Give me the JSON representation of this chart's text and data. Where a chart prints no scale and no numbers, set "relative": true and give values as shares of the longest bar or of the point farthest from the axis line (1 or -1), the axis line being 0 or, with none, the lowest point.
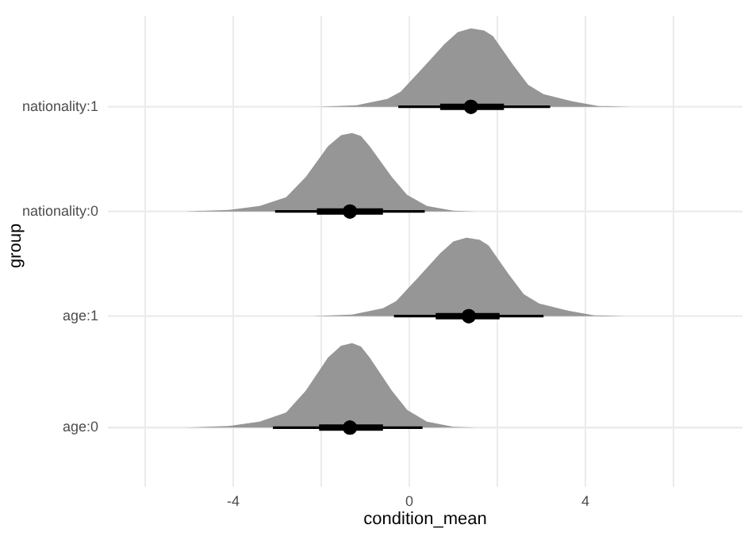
{
  "chart_data": [
    {
      "type": "area",
      "relative": true,
      "ylabel": "nationality:1",
      "tick_labels": false,
      "xlim": [
        -6.85,
        7.57
      ],
      "xticks": [
        {
          "value": -6,
          "label": null
        },
        {
          "value": -4,
          "label": null
        },
        {
          "value": -2,
          "label": null
        },
        {
          "value": 0,
          "label": null
        },
        {
          "value": 2,
          "label": null
        },
        {
          "value": 4,
          "label": null
        },
        {
          "value": 6,
          "label": null
        }
      ],
      "grid": "x",
      "series": [
        {
          "type": "area",
          "color": "#969696",
          "x": [
            -2.1,
            -1.2,
            -0.5,
            -0.2,
            0.3,
            0.8,
            1.1,
            1.4,
            1.7,
            1.9,
            2.35,
            2.7,
            3.05,
            3.7,
            4.3,
            5.0
          ],
          "values": [
            0,
            0.02,
            0.1,
            0.19,
            0.49,
            0.8,
            0.95,
            1,
            0.97,
            0.9,
            0.54,
            0.28,
            0.16,
            0.07,
            0.01,
            0
          ]
        },
        {
          "type": "scatter",
          "color": "#000000",
          "marker": "circle",
          "x": [
            1.4
          ],
          "values": [
            0
          ],
          "xerrors": [
            [
              -0.25,
              3.2
            ]
          ]
        },
        {
          "type": "scatter",
          "color": "#000000",
          "marker": "circle",
          "x": [
            1.4
          ],
          "values": [
            0
          ],
          "xerrors": [
            [
              0.7,
              2.15
            ]
          ]
        }
      ]
    },
    {
      "type": "area",
      "relative": true,
      "ylabel": "nationality:0",
      "annotations": [
        "group"
      ],
      "tick_labels": false,
      "xlim": [
        -6.85,
        7.57
      ],
      "xticks": [
        {
          "value": -6,
          "label": null
        },
        {
          "value": -4,
          "label": null
        },
        {
          "value": -2,
          "label": null
        },
        {
          "value": 0,
          "label": null
        },
        {
          "value": 2,
          "label": null
        },
        {
          "value": 4,
          "label": null
        },
        {
          "value": 6,
          "label": null
        }
      ],
      "grid": "x",
      "series": [
        {
          "type": "area",
          "color": "#969696",
          "x": [
            -5.1,
            -4.1,
            -3.4,
            -2.8,
            -2.35,
            -1.85,
            -1.55,
            -1.3,
            -1.1,
            -0.9,
            -0.4,
            -0.05,
            0.4,
            1.0,
            1.5
          ],
          "values": [
            0,
            0.02,
            0.07,
            0.18,
            0.44,
            0.83,
            0.97,
            1,
            0.96,
            0.83,
            0.44,
            0.21,
            0.07,
            0.01,
            0
          ]
        },
        {
          "type": "scatter",
          "color": "#000000",
          "marker": "circle",
          "x": [
            -1.35
          ],
          "values": [
            0
          ],
          "xerrors": [
            [
              -3.05,
              0.35
            ]
          ]
        },
        {
          "type": "scatter",
          "color": "#000000",
          "marker": "circle",
          "x": [
            -1.35
          ],
          "values": [
            0
          ],
          "xerrors": [
            [
              -2.1,
              -0.6
            ]
          ]
        }
      ]
    },
    {
      "type": "area",
      "relative": true,
      "ylabel": "age:1",
      "tick_labels": false,
      "xlim": [
        -6.85,
        7.57
      ],
      "xticks": [
        {
          "value": -6,
          "label": null
        },
        {
          "value": -4,
          "label": null
        },
        {
          "value": -2,
          "label": null
        },
        {
          "value": 0,
          "label": null
        },
        {
          "value": 2,
          "label": null
        },
        {
          "value": 4,
          "label": null
        },
        {
          "value": 6,
          "label": null
        }
      ],
      "grid": "x",
      "series": [
        {
          "type": "area",
          "color": "#969696",
          "x": [
            -2.2,
            -1.3,
            -0.6,
            -0.3,
            0.2,
            0.7,
            1.0,
            1.3,
            1.6,
            1.8,
            2.25,
            2.6,
            2.95,
            3.6,
            4.2,
            4.9
          ],
          "values": [
            0,
            0.02,
            0.1,
            0.19,
            0.49,
            0.8,
            0.95,
            1,
            0.97,
            0.9,
            0.54,
            0.28,
            0.16,
            0.07,
            0.01,
            0
          ]
        },
        {
          "type": "scatter",
          "color": "#000000",
          "marker": "circle",
          "x": [
            1.35
          ],
          "values": [
            0
          ],
          "xerrors": [
            [
              -0.35,
              3.05
            ]
          ]
        },
        {
          "type": "scatter",
          "color": "#000000",
          "marker": "circle",
          "x": [
            1.35
          ],
          "values": [
            0
          ],
          "xerrors": [
            [
              0.6,
              2.05
            ]
          ]
        }
      ]
    },
    {
      "type": "area",
      "relative": true,
      "ylabel": "age:0",
      "xlabel": "condition_mean",
      "tick_labels": "x",
      "xlim": [
        -6.85,
        7.57
      ],
      "xticks": [
        {
          "value": -6,
          "label": null
        },
        -4,
        {
          "value": -2,
          "label": null
        },
        0,
        {
          "value": 2,
          "label": null
        },
        4,
        {
          "value": 6,
          "label": null
        }
      ],
      "grid": "x",
      "series": [
        {
          "type": "area",
          "color": "#969696",
          "x": [
            -5.1,
            -4.1,
            -3.4,
            -2.8,
            -2.35,
            -1.85,
            -1.55,
            -1.3,
            -1.1,
            -0.9,
            -0.4,
            -0.05,
            0.4,
            1.0,
            1.5
          ],
          "values": [
            0,
            0.02,
            0.07,
            0.18,
            0.44,
            0.83,
            0.97,
            1,
            0.96,
            0.83,
            0.44,
            0.21,
            0.07,
            0.01,
            0
          ]
        },
        {
          "type": "scatter",
          "color": "#000000",
          "marker": "circle",
          "x": [
            -1.35
          ],
          "values": [
            0
          ],
          "xerrors": [
            [
              -3.1,
              0.3
            ]
          ]
        },
        {
          "type": "scatter",
          "color": "#000000",
          "marker": "circle",
          "x": [
            -1.35
          ],
          "values": [
            0
          ],
          "xerrors": [
            [
              -2.05,
              -0.6
            ]
          ]
        }
      ]
    }
  ]
}
